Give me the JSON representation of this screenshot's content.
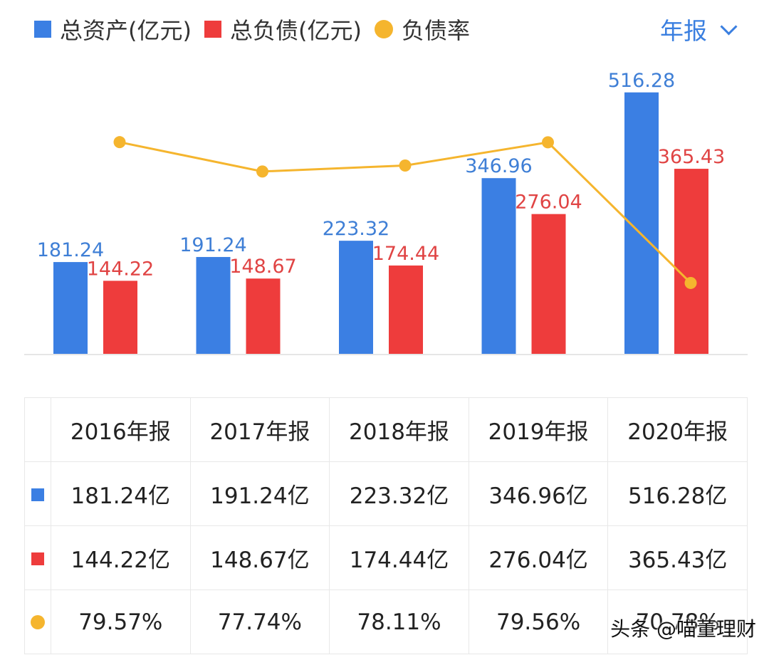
{
  "legend": {
    "assets_label": "总资产(亿元)",
    "liabilities_label": "总负债(亿元)",
    "ratio_label": "负债率"
  },
  "period_selector": {
    "label": "年报"
  },
  "colors": {
    "assets": "#3b7fe3",
    "liabilities": "#ee3c3c",
    "ratio": "#f5b52e",
    "accent": "#3a7fe0"
  },
  "chart_data": {
    "type": "bar",
    "categories": [
      "2016年报",
      "2017年报",
      "2018年报",
      "2019年报",
      "2020年报"
    ],
    "series": [
      {
        "name": "总资产(亿元)",
        "values": [
          181.24,
          191.24,
          223.32,
          346.96,
          516.28
        ],
        "value_labels": [
          "181.24",
          "191.24",
          "223.32",
          "346.96",
          "516.28"
        ]
      },
      {
        "name": "总负债(亿元)",
        "values": [
          144.22,
          148.67,
          174.44,
          276.04,
          365.43
        ],
        "value_labels": [
          "144.22",
          "148.67",
          "174.44",
          "276.04",
          "365.43"
        ]
      },
      {
        "name": "负债率",
        "type": "line",
        "values": [
          79.57,
          77.74,
          78.11,
          79.56,
          70.78
        ]
      }
    ],
    "ylim": [
      0,
      530
    ],
    "ratio_ylim": [
      70,
      80
    ]
  },
  "table": {
    "headers": [
      "2016年报",
      "2017年报",
      "2018年报",
      "2019年报",
      "2020年报"
    ],
    "rows": [
      {
        "marker": "blue-square",
        "cells": [
          "181.24亿",
          "191.24亿",
          "223.32亿",
          "346.96亿",
          "516.28亿"
        ]
      },
      {
        "marker": "red-square",
        "cells": [
          "144.22亿",
          "148.67亿",
          "174.44亿",
          "276.04亿",
          "365.43亿"
        ]
      },
      {
        "marker": "orange-dot",
        "cells": [
          "79.57%",
          "77.74%",
          "78.11%",
          "79.56%",
          "70.78%"
        ]
      }
    ]
  },
  "watermark": "头条 @喵董理财"
}
